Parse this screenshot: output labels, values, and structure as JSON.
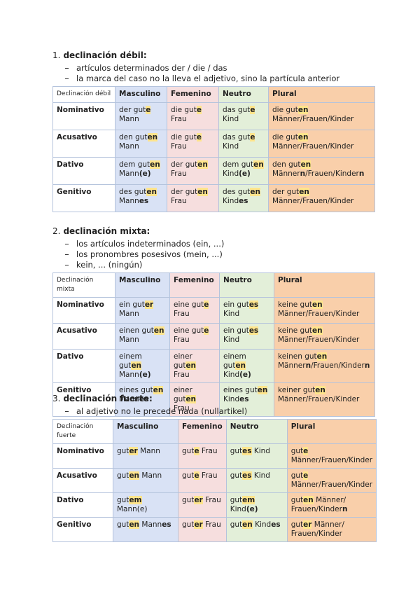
{
  "sections": [
    {
      "number": "1.",
      "title": "declinación débil:",
      "bullets": [
        "artículos determinados der / die / das",
        "la marca del caso no la lleva el adjetivo, sino la partícula anterior"
      ],
      "table": {
        "corner": "Declinación débil",
        "columns": [
          "Masculino",
          "Femenino",
          "Neutro",
          "Plural"
        ],
        "rows": [
          {
            "case": "Nominativo",
            "cells": [
              [
                [
                  "der gut",
                  {
                    "text": "e",
                    "style": "hl"
                  }
                ],
                [
                  "Mann"
                ]
              ],
              [
                [
                  "die gut",
                  {
                    "text": "e",
                    "style": "hl"
                  }
                ],
                [
                  "Frau"
                ]
              ],
              [
                [
                  "das gut",
                  {
                    "text": "e",
                    "style": "hl"
                  }
                ],
                [
                  "Kind"
                ]
              ],
              [
                [
                  "die gut",
                  {
                    "text": "en",
                    "style": "hl"
                  }
                ],
                [
                  "Männer/Frauen/Kinder"
                ]
              ]
            ]
          },
          {
            "case": "Acusativo",
            "cells": [
              [
                [
                  "den gut",
                  {
                    "text": "en",
                    "style": "hl"
                  }
                ],
                [
                  "Mann"
                ]
              ],
              [
                [
                  "die gut",
                  {
                    "text": "e",
                    "style": "hl"
                  }
                ],
                [
                  "Frau"
                ]
              ],
              [
                [
                  "das gut",
                  {
                    "text": "e",
                    "style": "hl"
                  }
                ],
                [
                  "Kind"
                ]
              ],
              [
                [
                  "die gut",
                  {
                    "text": "en",
                    "style": "hl"
                  }
                ],
                [
                  "Männer/Frauen/Kinder"
                ]
              ]
            ]
          },
          {
            "case": "Dativo",
            "cells": [
              [
                [
                  "dem gut",
                  {
                    "text": "en",
                    "style": "hl"
                  }
                ],
                [
                  "Mann",
                  {
                    "text": "(e)",
                    "style": "bold"
                  }
                ]
              ],
              [
                [
                  "der gut",
                  {
                    "text": "en",
                    "style": "hl"
                  }
                ],
                [
                  "Frau"
                ]
              ],
              [
                [
                  "dem gut",
                  {
                    "text": "en",
                    "style": "hl"
                  }
                ],
                [
                  "Kind",
                  {
                    "text": "(e)",
                    "style": "bold"
                  }
                ]
              ],
              [
                [
                  "den gut",
                  {
                    "text": "en",
                    "style": "hl"
                  }
                ],
                [
                  "Männer",
                  {
                    "text": "n",
                    "style": "bold"
                  },
                  "/Frauen/Kinder",
                  {
                    "text": "n",
                    "style": "bold"
                  }
                ]
              ]
            ]
          },
          {
            "case": "Genitivo",
            "cells": [
              [
                [
                  "des gut",
                  {
                    "text": "en",
                    "style": "hl"
                  }
                ],
                [
                  "Mann",
                  {
                    "text": "es",
                    "style": "bold"
                  }
                ]
              ],
              [
                [
                  "der gut",
                  {
                    "text": "en",
                    "style": "hl"
                  }
                ],
                [
                  "Frau"
                ]
              ],
              [
                [
                  "des gut",
                  {
                    "text": "en",
                    "style": "hl"
                  }
                ],
                [
                  "Kind",
                  {
                    "text": "es",
                    "style": "bold"
                  }
                ]
              ],
              [
                [
                  "der gut",
                  {
                    "text": "en",
                    "style": "hl"
                  }
                ],
                [
                  "Männer/Frauen/Kinder"
                ]
              ]
            ]
          }
        ]
      }
    },
    {
      "number": "2.",
      "title": "declinación mixta:",
      "bullets": [
        "los artículos indeterminados (ein, ...)",
        "los pronombres posesivos (mein, ...)",
        "kein, ... (ningún)"
      ],
      "table": {
        "corner": "Declinación mixta",
        "columns": [
          "Masculino",
          "Femenino",
          "Neutro",
          "Plural"
        ],
        "rows": [
          {
            "case": "Nominativo",
            "cells": [
              [
                [
                  "ein gut",
                  {
                    "text": "er",
                    "style": "hl"
                  }
                ],
                [
                  "Mann"
                ]
              ],
              [
                [
                  "eine gut",
                  {
                    "text": "e",
                    "style": "hl"
                  }
                ],
                [
                  "Frau"
                ]
              ],
              [
                [
                  "ein gut",
                  {
                    "text": "es",
                    "style": "hl"
                  }
                ],
                [
                  "Kind"
                ]
              ],
              [
                [
                  "keine gut",
                  {
                    "text": "en",
                    "style": "hl"
                  }
                ],
                [
                  "Männer/Frauen/Kinder"
                ]
              ]
            ]
          },
          {
            "case": "Acusativo",
            "cells": [
              [
                [
                  "einen gut",
                  {
                    "text": "en",
                    "style": "hl"
                  }
                ],
                [
                  "Mann"
                ]
              ],
              [
                [
                  "eine gut",
                  {
                    "text": "e",
                    "style": "hl"
                  }
                ],
                [
                  "Frau"
                ]
              ],
              [
                [
                  "ein gut",
                  {
                    "text": "es",
                    "style": "hl"
                  }
                ],
                [
                  "Kind"
                ]
              ],
              [
                [
                  "keine gut",
                  {
                    "text": "en",
                    "style": "hl"
                  }
                ],
                [
                  "Männer/Frauen/Kinder"
                ]
              ]
            ]
          },
          {
            "case": "Dativo",
            "cells": [
              [
                [
                  "einem gut",
                  {
                    "text": "en",
                    "style": "hl"
                  }
                ],
                [
                  "Mann",
                  {
                    "text": "(e)",
                    "style": "bold"
                  }
                ]
              ],
              [
                [
                  "einer gut",
                  {
                    "text": "en",
                    "style": "hl"
                  }
                ],
                [
                  "Frau"
                ]
              ],
              [
                [
                  "einem gut",
                  {
                    "text": "en",
                    "style": "hl"
                  }
                ],
                [
                  "Kind",
                  {
                    "text": "(e)",
                    "style": "bold"
                  }
                ]
              ],
              [
                [
                  "keinen gut",
                  {
                    "text": "en",
                    "style": "hl"
                  }
                ],
                [
                  "Männer",
                  {
                    "text": "n",
                    "style": "bold"
                  },
                  "/Frauen/Kinder",
                  {
                    "text": "n",
                    "style": "bold"
                  }
                ]
              ]
            ]
          },
          {
            "case": "Genitivo",
            "cells": [
              [
                [
                  "eines gut",
                  {
                    "text": "en",
                    "style": "hl"
                  }
                ],
                [
                  "Mann",
                  {
                    "text": "es",
                    "style": "bold"
                  }
                ]
              ],
              [
                [
                  "einer gut",
                  {
                    "text": "en",
                    "style": "hl"
                  }
                ],
                [
                  "Frau"
                ]
              ],
              [
                [
                  "eines gut",
                  {
                    "text": "en",
                    "style": "hl"
                  }
                ],
                [
                  "Kind",
                  {
                    "text": "es",
                    "style": "bold"
                  }
                ]
              ],
              [
                [
                  "keiner gut",
                  {
                    "text": "en",
                    "style": "hl"
                  }
                ],
                [
                  "Männer/Frauen/Kinder"
                ]
              ]
            ]
          }
        ]
      }
    },
    {
      "number": "3.",
      "title": "declinación fuerte:",
      "bullets": [
        "al adjetivo no le precede nada (nullartikel)"
      ],
      "table": {
        "corner": "Declinación fuerte",
        "columns": [
          "Masculino",
          "Femenino",
          "Neutro",
          "Plural"
        ],
        "rows": [
          {
            "case": "Nominativo",
            "cells": [
              [
                [
                  "gut",
                  {
                    "text": "er",
                    "style": "hl"
                  },
                  " Mann"
                ]
              ],
              [
                [
                  "gut",
                  {
                    "text": "e",
                    "style": "hl"
                  },
                  " Frau"
                ]
              ],
              [
                [
                  "gut",
                  {
                    "text": "es",
                    "style": "hl"
                  },
                  " Kind"
                ]
              ],
              [
                [
                  "gut",
                  {
                    "text": "e",
                    "style": "hl"
                  }
                ],
                [
                  "Männer/Frauen/Kinder"
                ]
              ]
            ]
          },
          {
            "case": "Acusativo",
            "cells": [
              [
                [
                  "gut",
                  {
                    "text": "en",
                    "style": "hl"
                  },
                  " Mann"
                ]
              ],
              [
                [
                  "gut",
                  {
                    "text": "e",
                    "style": "hl"
                  },
                  " Frau"
                ]
              ],
              [
                [
                  "gut",
                  {
                    "text": "es",
                    "style": "hl"
                  },
                  " Kind"
                ]
              ],
              [
                [
                  "gut",
                  {
                    "text": "e",
                    "style": "hl"
                  }
                ],
                [
                  "Männer/Frauen/Kinder"
                ]
              ]
            ]
          },
          {
            "case": "Dativo",
            "cells": [
              [
                [
                  "gut",
                  {
                    "text": "em",
                    "style": "hl"
                  },
                  " Mann(e)"
                ]
              ],
              [
                [
                  "gut",
                  {
                    "text": "er",
                    "style": "hl"
                  },
                  " Frau"
                ]
              ],
              [
                [
                  "gut",
                  {
                    "text": "em",
                    "style": "hl"
                  },
                  " Kind",
                  {
                    "text": "(e)",
                    "style": "bold"
                  }
                ]
              ],
              [
                [
                  "gut",
                  {
                    "text": "en",
                    "style": "hl"
                  },
                  " Männer/"
                ],
                [
                  "Frauen/Kinder",
                  {
                    "text": "n",
                    "style": "bold"
                  }
                ]
              ]
            ]
          },
          {
            "case": "Genitivo",
            "cells": [
              [
                [
                  "gut",
                  {
                    "text": "en",
                    "style": "hl"
                  },
                  " Mann",
                  {
                    "text": "es",
                    "style": "bold"
                  }
                ]
              ],
              [
                [
                  "gut",
                  {
                    "text": "er",
                    "style": "hl"
                  },
                  " Frau"
                ]
              ],
              [
                [
                  "gut",
                  {
                    "text": "en",
                    "style": "hl"
                  },
                  " Kind",
                  {
                    "text": "es",
                    "style": "bold"
                  }
                ]
              ],
              [
                [
                  "gut",
                  {
                    "text": "er",
                    "style": "hl"
                  },
                  " Männer/"
                ],
                [
                  "Frauen/Kinder"
                ]
              ]
            ]
          }
        ]
      }
    }
  ]
}
